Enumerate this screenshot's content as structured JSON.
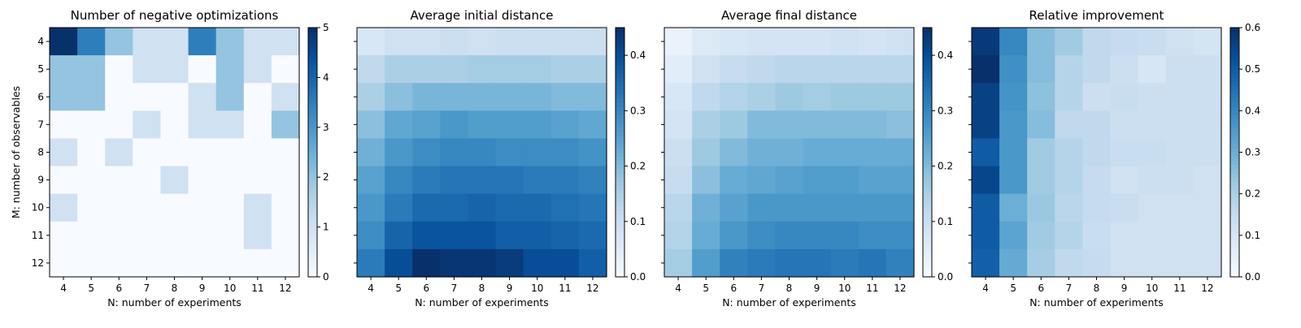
{
  "chart_data": [
    {
      "type": "heatmap",
      "title": "Number of negative optimizations",
      "xlabel": "N: number of experiments",
      "ylabel": "M: number of observables",
      "x": [
        4,
        5,
        6,
        7,
        8,
        9,
        10,
        11,
        12
      ],
      "y": [
        4,
        5,
        6,
        7,
        8,
        9,
        10,
        11,
        12
      ],
      "colormap": "Blues",
      "vmin": 0,
      "vmax": 5,
      "colorbar_ticks": [
        0,
        1,
        2,
        3,
        4,
        5
      ],
      "values": [
        [
          5,
          3.5,
          2,
          1,
          1,
          3.5,
          2,
          1,
          1
        ],
        [
          2,
          2,
          0,
          1,
          1,
          0,
          2,
          1,
          0
        ],
        [
          2,
          2,
          0,
          0,
          0,
          1,
          2,
          0,
          1
        ],
        [
          0,
          0,
          0,
          1,
          0,
          1,
          1,
          0,
          2
        ],
        [
          1,
          0,
          1,
          0,
          0,
          0,
          0,
          0,
          0
        ],
        [
          0,
          0,
          0,
          0,
          1,
          0,
          0,
          0,
          0
        ],
        [
          1,
          0,
          0,
          0,
          0,
          0,
          0,
          1,
          0
        ],
        [
          0,
          0,
          0,
          0,
          0,
          0,
          0,
          1,
          0
        ],
        [
          0,
          0,
          0,
          0,
          0,
          0,
          0,
          0,
          0
        ]
      ]
    },
    {
      "type": "heatmap",
      "title": "Average initial distance",
      "xlabel": "N: number of experiments",
      "ylabel": "",
      "x": [
        4,
        5,
        6,
        7,
        8,
        9,
        10,
        11,
        12
      ],
      "y": [
        4,
        5,
        6,
        7,
        8,
        9,
        10,
        11,
        12
      ],
      "colormap": "Blues",
      "vmin": 0,
      "vmax": 0.45,
      "colorbar_ticks": [
        0.0,
        0.1,
        0.2,
        0.3,
        0.4
      ],
      "values": [
        [
          0.07,
          0.09,
          0.09,
          0.1,
          0.09,
          0.1,
          0.1,
          0.1,
          0.1
        ],
        [
          0.12,
          0.15,
          0.15,
          0.15,
          0.16,
          0.16,
          0.16,
          0.15,
          0.15
        ],
        [
          0.15,
          0.19,
          0.21,
          0.21,
          0.21,
          0.21,
          0.21,
          0.2,
          0.2
        ],
        [
          0.19,
          0.24,
          0.25,
          0.27,
          0.26,
          0.26,
          0.26,
          0.25,
          0.24
        ],
        [
          0.22,
          0.27,
          0.29,
          0.3,
          0.3,
          0.29,
          0.29,
          0.29,
          0.28
        ],
        [
          0.25,
          0.3,
          0.32,
          0.33,
          0.33,
          0.33,
          0.32,
          0.32,
          0.31
        ],
        [
          0.27,
          0.32,
          0.35,
          0.35,
          0.36,
          0.35,
          0.35,
          0.34,
          0.33
        ],
        [
          0.29,
          0.36,
          0.39,
          0.39,
          0.39,
          0.37,
          0.37,
          0.36,
          0.35
        ],
        [
          0.32,
          0.4,
          0.45,
          0.44,
          0.44,
          0.43,
          0.4,
          0.4,
          0.37
        ]
      ]
    },
    {
      "type": "heatmap",
      "title": "Average final distance",
      "xlabel": "N: number of experiments",
      "ylabel": "",
      "x": [
        4,
        5,
        6,
        7,
        8,
        9,
        10,
        11,
        12
      ],
      "y": [
        4,
        5,
        6,
        7,
        8,
        9,
        10,
        11,
        12
      ],
      "colormap": "Blues",
      "vmin": 0,
      "vmax": 0.45,
      "colorbar_ticks": [
        0.0,
        0.1,
        0.2,
        0.3,
        0.4
      ],
      "values": [
        [
          0.03,
          0.06,
          0.07,
          0.08,
          0.08,
          0.08,
          0.09,
          0.08,
          0.09
        ],
        [
          0.05,
          0.09,
          0.11,
          0.12,
          0.13,
          0.13,
          0.13,
          0.13,
          0.13
        ],
        [
          0.07,
          0.12,
          0.14,
          0.15,
          0.17,
          0.16,
          0.17,
          0.17,
          0.17
        ],
        [
          0.08,
          0.15,
          0.17,
          0.2,
          0.2,
          0.2,
          0.2,
          0.2,
          0.19
        ],
        [
          0.1,
          0.17,
          0.2,
          0.22,
          0.22,
          0.23,
          0.23,
          0.23,
          0.23
        ],
        [
          0.11,
          0.19,
          0.23,
          0.24,
          0.25,
          0.26,
          0.26,
          0.25,
          0.25
        ],
        [
          0.13,
          0.22,
          0.25,
          0.27,
          0.27,
          0.27,
          0.27,
          0.27,
          0.27
        ],
        [
          0.14,
          0.23,
          0.27,
          0.29,
          0.3,
          0.3,
          0.3,
          0.29,
          0.29
        ],
        [
          0.16,
          0.26,
          0.31,
          0.32,
          0.33,
          0.33,
          0.32,
          0.33,
          0.31
        ]
      ]
    },
    {
      "type": "heatmap",
      "title": "Relative improvement",
      "xlabel": "N: number of experiments",
      "ylabel": "",
      "x": [
        4,
        5,
        6,
        7,
        8,
        9,
        10,
        11,
        12
      ],
      "y": [
        4,
        5,
        6,
        7,
        8,
        9,
        10,
        11,
        12
      ],
      "colormap": "Blues",
      "vmin": 0,
      "vmax": 0.6,
      "colorbar_ticks": [
        0.0,
        0.1,
        0.2,
        0.3,
        0.4,
        0.5,
        0.6
      ],
      "values": [
        [
          0.58,
          0.4,
          0.26,
          0.22,
          0.16,
          0.15,
          0.14,
          0.12,
          0.11
        ],
        [
          0.6,
          0.38,
          0.26,
          0.18,
          0.16,
          0.13,
          0.1,
          0.13,
          0.13
        ],
        [
          0.56,
          0.37,
          0.25,
          0.18,
          0.13,
          0.14,
          0.13,
          0.13,
          0.13
        ],
        [
          0.56,
          0.36,
          0.26,
          0.16,
          0.16,
          0.13,
          0.13,
          0.13,
          0.13
        ],
        [
          0.5,
          0.36,
          0.22,
          0.18,
          0.16,
          0.14,
          0.14,
          0.13,
          0.13
        ],
        [
          0.55,
          0.36,
          0.22,
          0.18,
          0.15,
          0.12,
          0.13,
          0.13,
          0.12
        ],
        [
          0.5,
          0.3,
          0.23,
          0.17,
          0.15,
          0.14,
          0.12,
          0.12,
          0.12
        ],
        [
          0.5,
          0.33,
          0.22,
          0.18,
          0.14,
          0.12,
          0.12,
          0.12,
          0.12
        ],
        [
          0.49,
          0.31,
          0.21,
          0.16,
          0.15,
          0.12,
          0.12,
          0.12,
          0.12
        ]
      ]
    }
  ]
}
